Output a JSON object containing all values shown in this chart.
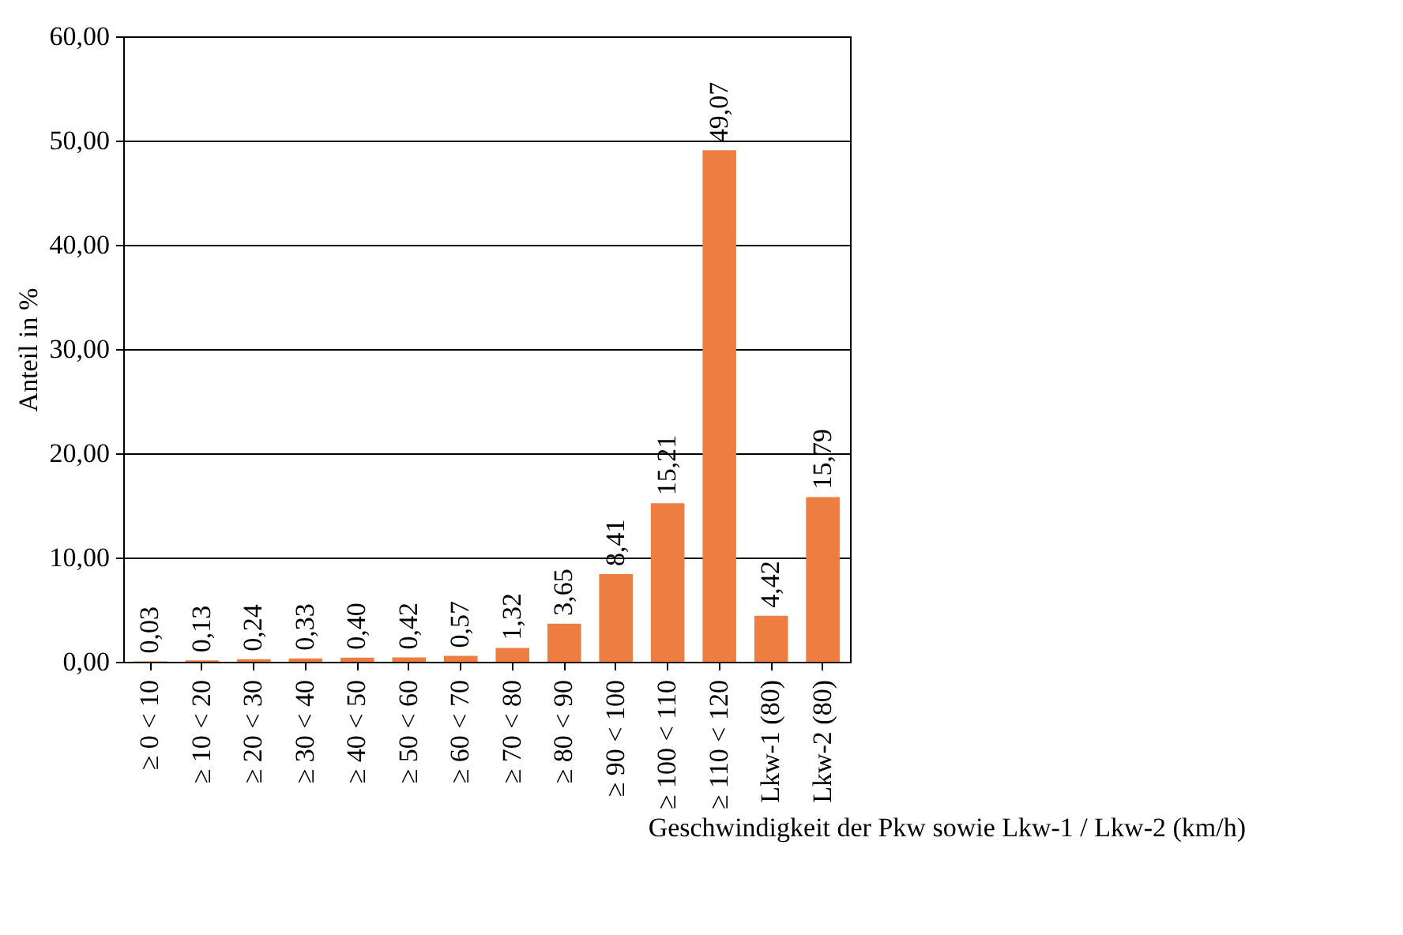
{
  "chart_data": {
    "type": "bar",
    "xlabel": "Geschwindigkeit der Pkw sowie Lkw-1 / Lkw-2 (km/h)",
    "ylabel": "Anteil in %",
    "categories": [
      "≥ 0 < 10",
      "≥ 10 < 20",
      "≥ 20 < 30",
      "≥ 30 < 40",
      "≥ 40 < 50",
      "≥ 50 < 60",
      "≥ 60 < 70",
      "≥ 70 < 80",
      "≥ 80 < 90",
      "≥ 90 < 100",
      "≥ 100 < 110",
      "≥ 110 < 120",
      "Lkw-1 (80)",
      "Lkw-2 (80)"
    ],
    "values": [
      0.03,
      0.13,
      0.24,
      0.33,
      0.4,
      0.42,
      0.57,
      1.32,
      3.65,
      8.41,
      15.21,
      49.07,
      4.42,
      15.79
    ],
    "value_labels": [
      "0,03",
      "0,13",
      "0,24",
      "0,33",
      "0,40",
      "0,42",
      "0,57",
      "1,32",
      "3,65",
      "8,41",
      "15,21",
      "49,07",
      "4,42",
      "15,79"
    ],
    "color": "#ed7d40",
    "ylim": [
      0,
      60
    ],
    "yticks": [
      {
        "value": 0,
        "label": "0,00"
      },
      {
        "value": 10,
        "label": "10,00"
      },
      {
        "value": 20,
        "label": "20,00"
      },
      {
        "value": 30,
        "label": "30,00"
      },
      {
        "value": 40,
        "label": "40,00"
      },
      {
        "value": 50,
        "label": "50,00"
      },
      {
        "value": 60,
        "label": "60,00"
      }
    ],
    "grid": "y"
  }
}
